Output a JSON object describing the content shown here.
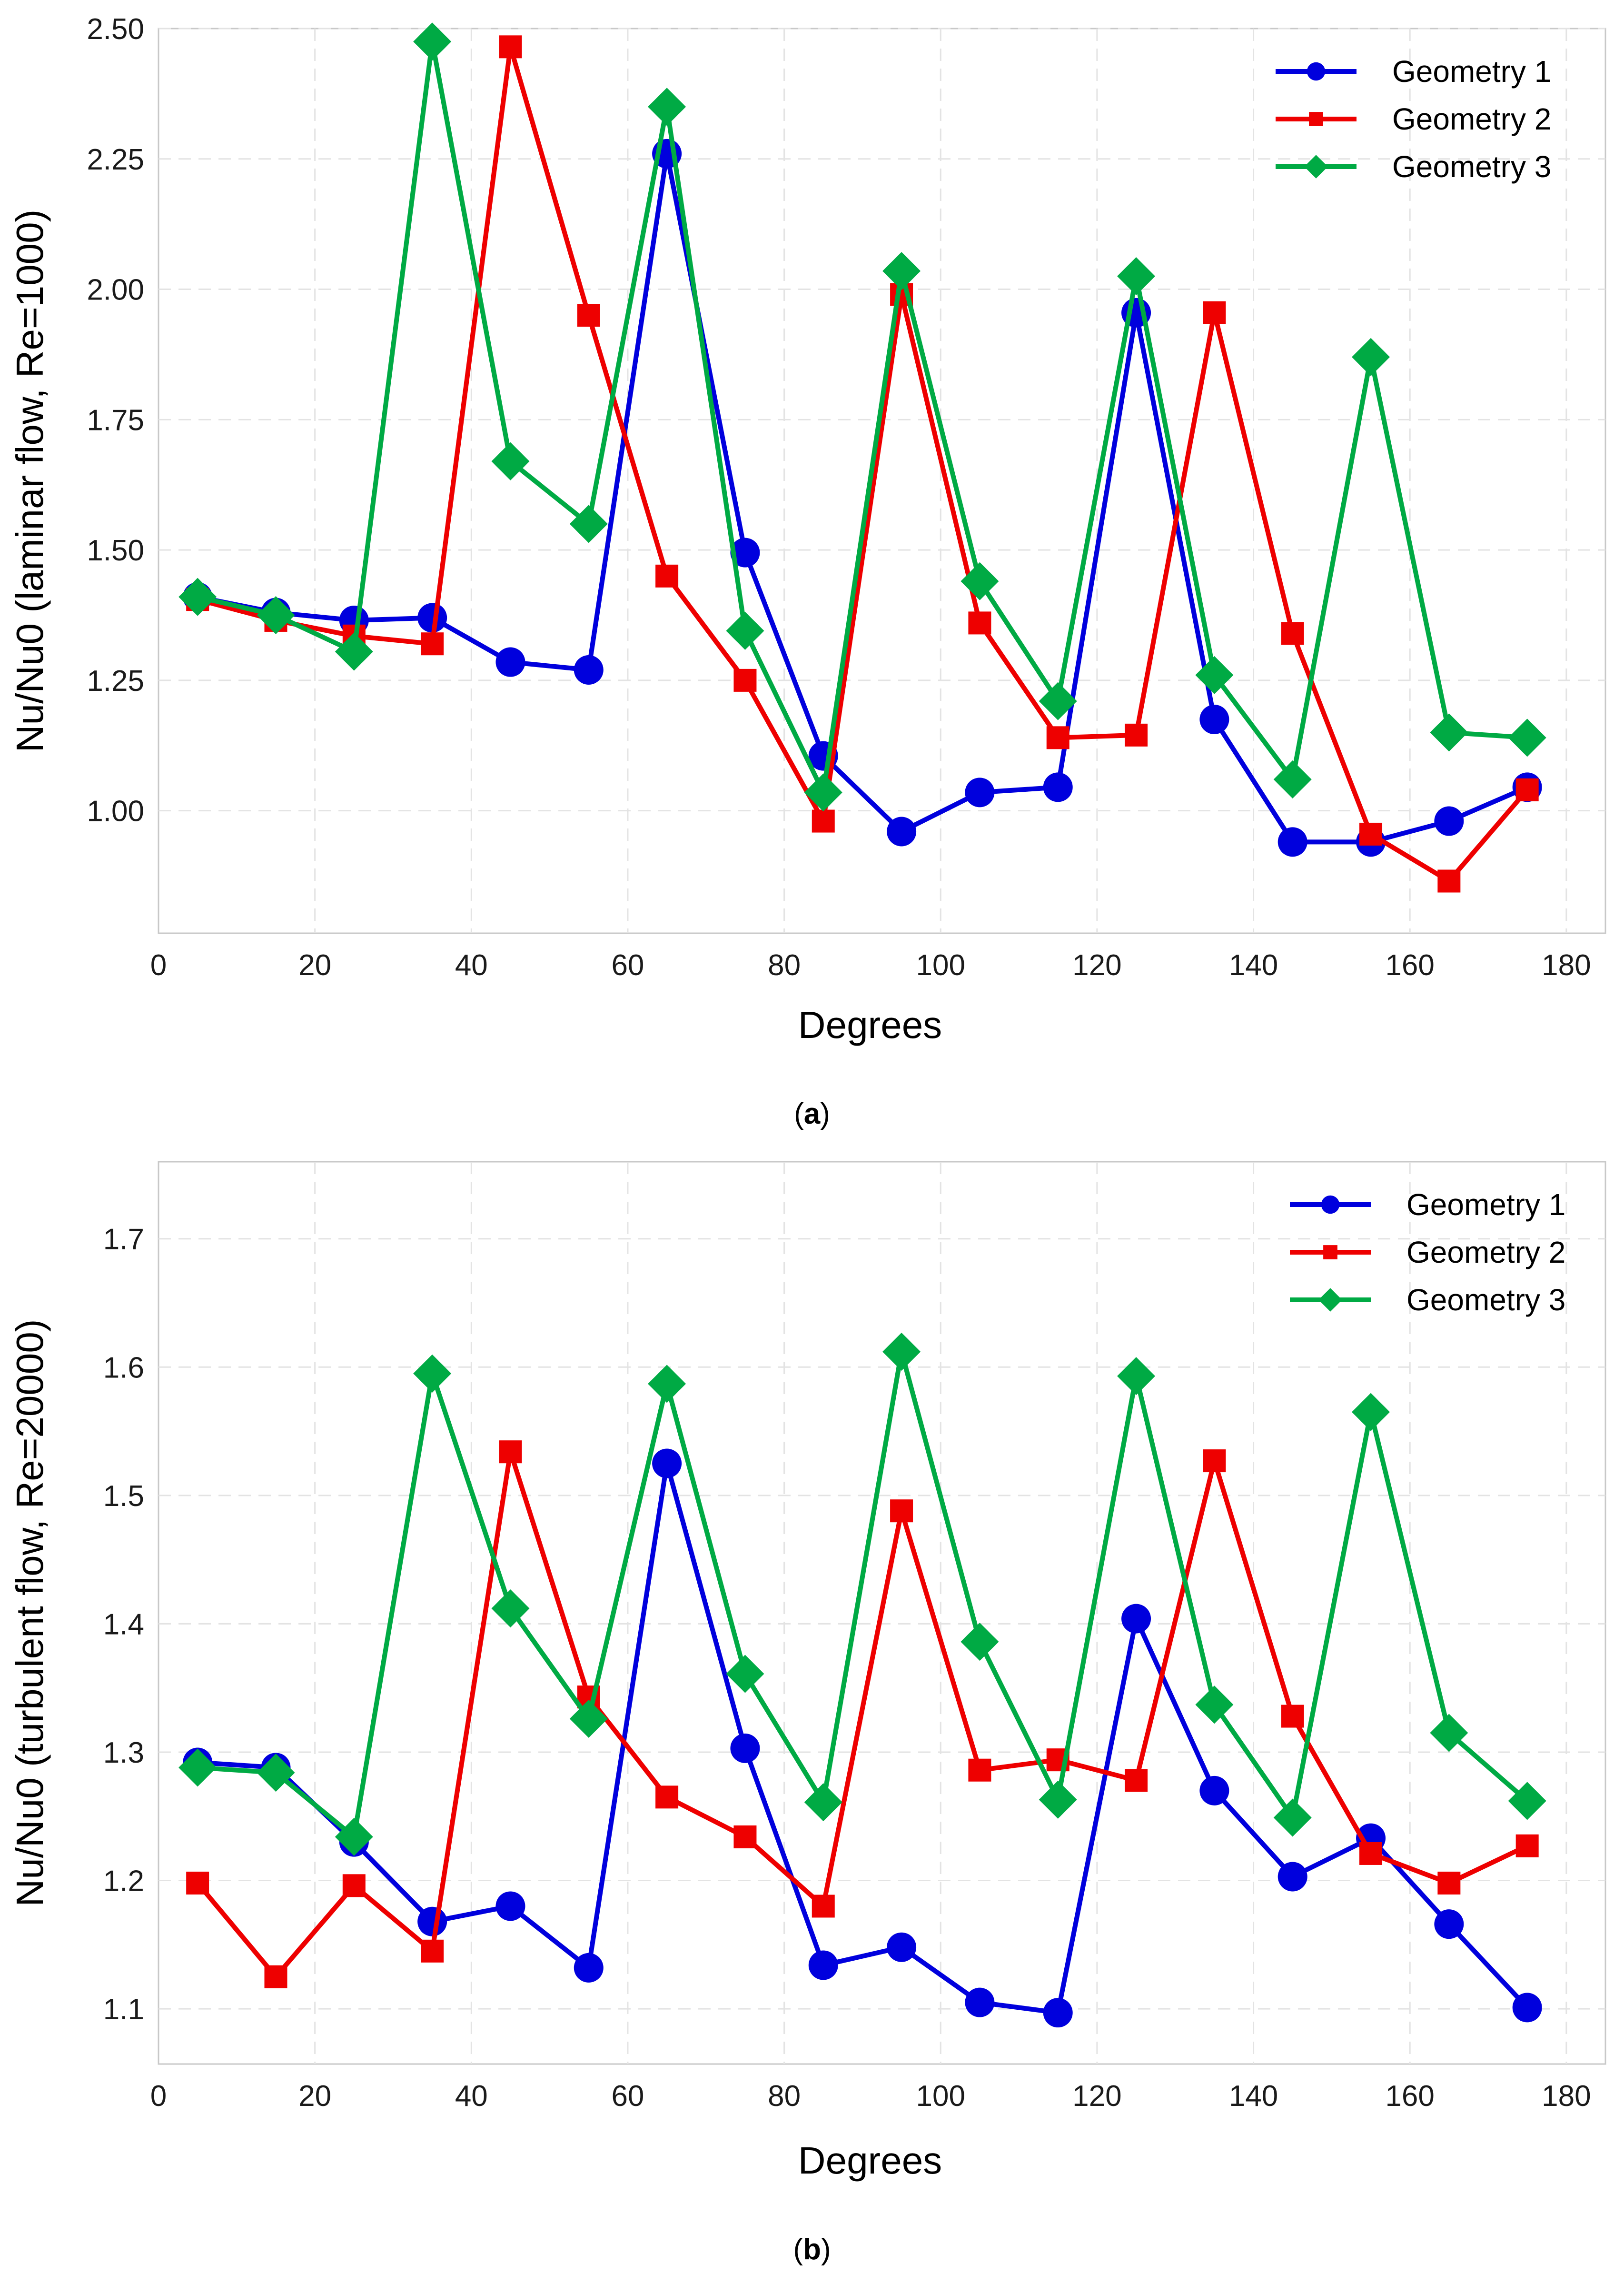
{
  "chart_data": [
    {
      "type": "line",
      "caption": "(a)",
      "caption_letter": "a",
      "title": "",
      "xlabel": "Degrees",
      "ylabel": "Nu/Nu0 (laminar flow, Re=1000)",
      "xlim": [
        0,
        185
      ],
      "ylim": [
        0.765,
        2.5
      ],
      "x_ticks": [
        0,
        20,
        40,
        60,
        80,
        100,
        120,
        140,
        160,
        180
      ],
      "y_ticks": [
        1.0,
        1.25,
        1.5,
        1.75,
        2.0,
        2.25,
        2.5
      ],
      "y_tick_labels": [
        "1.00",
        "1.25",
        "1.50",
        "1.75",
        "2.00",
        "2.25",
        "2.50"
      ],
      "x_tick_labels": [
        "0",
        "20",
        "40",
        "60",
        "80",
        "100",
        "120",
        "140",
        "160",
        "180"
      ],
      "grid": true,
      "legend_position": "top-right",
      "x": [
        5,
        15,
        25,
        35,
        45,
        55,
        65,
        75,
        85,
        95,
        105,
        115,
        125,
        135,
        145,
        155,
        165,
        175
      ],
      "series": [
        {
          "name": "Geometry 1",
          "color": "#0000dd",
          "marker": "circle",
          "values": [
            1.41,
            1.38,
            1.365,
            1.37,
            1.285,
            1.27,
            2.26,
            1.495,
            1.105,
            0.96,
            1.035,
            1.045,
            1.955,
            1.175,
            0.94,
            0.94,
            0.98,
            1.045
          ]
        },
        {
          "name": "Geometry 2",
          "color": "#ee0000",
          "marker": "square",
          "values": [
            1.405,
            1.365,
            1.335,
            1.32,
            2.465,
            1.95,
            1.45,
            1.25,
            0.98,
            1.99,
            1.36,
            1.14,
            1.145,
            1.955,
            1.34,
            0.955,
            0.865,
            1.04
          ]
        },
        {
          "name": "Geometry 3",
          "color": "#00aa44",
          "marker": "diamond",
          "values": [
            1.41,
            1.375,
            1.305,
            2.475,
            1.67,
            1.55,
            2.35,
            1.345,
            1.035,
            2.035,
            1.44,
            1.21,
            2.025,
            1.26,
            1.06,
            1.87,
            1.15,
            1.14
          ]
        }
      ]
    },
    {
      "type": "line",
      "caption": "(b)",
      "caption_letter": "b",
      "title": "",
      "xlabel": "Degrees",
      "ylabel": "Nu/Nu0 (turbulent flow, Re=20000)",
      "xlim": [
        0,
        185
      ],
      "ylim": [
        1.057,
        1.76
      ],
      "x_ticks": [
        0,
        20,
        40,
        60,
        80,
        100,
        120,
        140,
        160,
        180
      ],
      "y_ticks": [
        1.1,
        1.2,
        1.3,
        1.4,
        1.5,
        1.6,
        1.7
      ],
      "y_tick_labels": [
        "1.1",
        "1.2",
        "1.3",
        "1.4",
        "1.5",
        "1.6",
        "1.7"
      ],
      "x_tick_labels": [
        "0",
        "20",
        "40",
        "60",
        "80",
        "100",
        "120",
        "140",
        "160",
        "180"
      ],
      "grid": true,
      "legend_position": "top-right",
      "x": [
        5,
        15,
        25,
        35,
        45,
        55,
        65,
        75,
        85,
        95,
        105,
        115,
        125,
        135,
        145,
        155,
        165,
        175
      ],
      "series": [
        {
          "name": "Geometry 1",
          "color": "#0000dd",
          "marker": "circle",
          "values": [
            1.292,
            1.288,
            1.23,
            1.168,
            1.18,
            1.132,
            1.525,
            1.303,
            1.134,
            1.148,
            1.105,
            1.097,
            1.404,
            1.27,
            1.203,
            1.233,
            1.166,
            1.101
          ]
        },
        {
          "name": "Geometry 2",
          "color": "#ee0000",
          "marker": "square",
          "values": [
            1.198,
            1.125,
            1.196,
            1.145,
            1.534,
            1.343,
            1.265,
            1.234,
            1.18,
            1.488,
            1.286,
            1.294,
            1.278,
            1.527,
            1.328,
            1.221,
            1.198,
            1.227
          ]
        },
        {
          "name": "Geometry 3",
          "color": "#00aa44",
          "marker": "diamond",
          "values": [
            1.288,
            1.284,
            1.234,
            1.595,
            1.412,
            1.326,
            1.587,
            1.361,
            1.261,
            1.612,
            1.386,
            1.263,
            1.593,
            1.337,
            1.249,
            1.565,
            1.315,
            1.262
          ]
        }
      ]
    }
  ]
}
